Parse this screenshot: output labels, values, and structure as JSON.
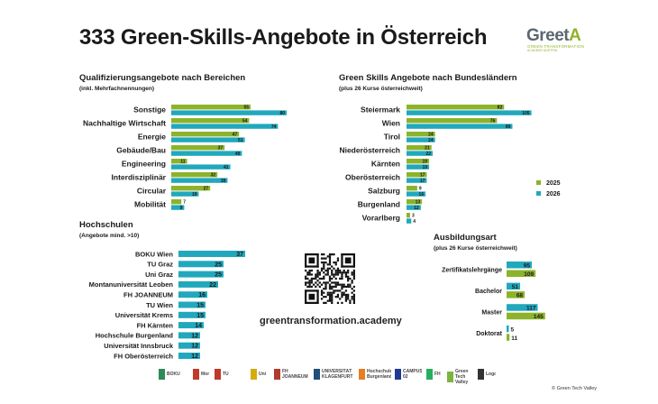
{
  "title": "333 Green-Skills-Angebote in Österreich",
  "brand": {
    "word_main": "Greet",
    "word_accent": "A",
    "sub1": "GREEN TRANSFORMATION",
    "sub2": "ACADEMY AUSTRIA"
  },
  "colors": {
    "green": "#8cb32a",
    "teal": "#21a8bd",
    "text": "#1a1a1a"
  },
  "chart_data": [
    {
      "type": "bar",
      "orientation": "horizontal",
      "title": "Qualifizierungsangebote nach Bereichen",
      "subtitle": "(inkl. Mehrfachnennungen)",
      "categories": [
        "Sonstige",
        "Nachhaltige Wirtschaft",
        "Energie",
        "Gebäude/Bau",
        "Engineering",
        "Interdisziplinär",
        "Circular",
        "Mobilität"
      ],
      "series": [
        {
          "name": "2025",
          "color": "#8cb32a",
          "values": [
            55,
            54,
            47,
            37,
            11,
            32,
            27,
            7
          ]
        },
        {
          "name": "2026",
          "color": "#21a8bd",
          "values": [
            80,
            74,
            51,
            49,
            41,
            39,
            19,
            9
          ]
        }
      ]
    },
    {
      "type": "bar",
      "orientation": "horizontal",
      "title": "Green Skills Angebote nach Bundesländern",
      "subtitle": "(plus 26 Kurse österreichweit)",
      "categories": [
        "Steiermark",
        "Wien",
        "Tirol",
        "Niederösterreich",
        "Kärnten",
        "Oberösterreich",
        "Salzburg",
        "Burgenland",
        "Vorarlberg"
      ],
      "series": [
        {
          "name": "2025",
          "color": "#8cb32a",
          "values": [
            82,
            76,
            24,
            21,
            19,
            17,
            9,
            13,
            3
          ]
        },
        {
          "name": "2026",
          "color": "#21a8bd",
          "values": [
            105,
            89,
            24,
            22,
            19,
            17,
            16,
            12,
            4
          ]
        }
      ],
      "legend": [
        "2025",
        "2026"
      ],
      "legend_position": "right"
    },
    {
      "type": "bar",
      "orientation": "horizontal",
      "title": "Hochschulen",
      "subtitle": "(Angebote mind. >10)",
      "categories": [
        "BOKU Wien",
        "TU Graz",
        "Uni Graz",
        "Montanuniversität Leoben",
        "FH JOANNEUM",
        "TU Wien",
        "Universität Krems",
        "FH Kärnten",
        "Hochschule Burgenland",
        "Universität Innsbruck",
        "FH Oberösterreich"
      ],
      "series": [
        {
          "name": "",
          "color": "#21a8bd",
          "values": [
            37,
            25,
            25,
            22,
            16,
            15,
            15,
            14,
            12,
            12,
            12
          ]
        }
      ]
    },
    {
      "type": "bar",
      "orientation": "horizontal",
      "title": "Ausbildungsart",
      "subtitle": "(plus 26 Kurse österreichweit)",
      "categories": [
        "Zertifikatslehrgänge",
        "Bachelor",
        "Master",
        "Doktorat"
      ],
      "series": [
        {
          "name": "2026",
          "color": "#21a8bd",
          "values": [
            95,
            51,
            117,
            5
          ]
        },
        {
          "name": "2025",
          "color": "#8cb32a",
          "values": [
            109,
            68,
            145,
            11
          ]
        }
      ]
    }
  ],
  "url": "greentransformation.academy",
  "logos": [
    "BOKU",
    "Montanuniversität",
    "TU",
    "Uni",
    "FH JOANNEUM",
    "UNIVERSITÄT KLAGENFURT",
    "Hochschule Burgenland",
    "CAMPUS 02",
    "FH",
    "Green Tech Valley",
    "Logo"
  ],
  "copyright": "© Green Tech Valley"
}
